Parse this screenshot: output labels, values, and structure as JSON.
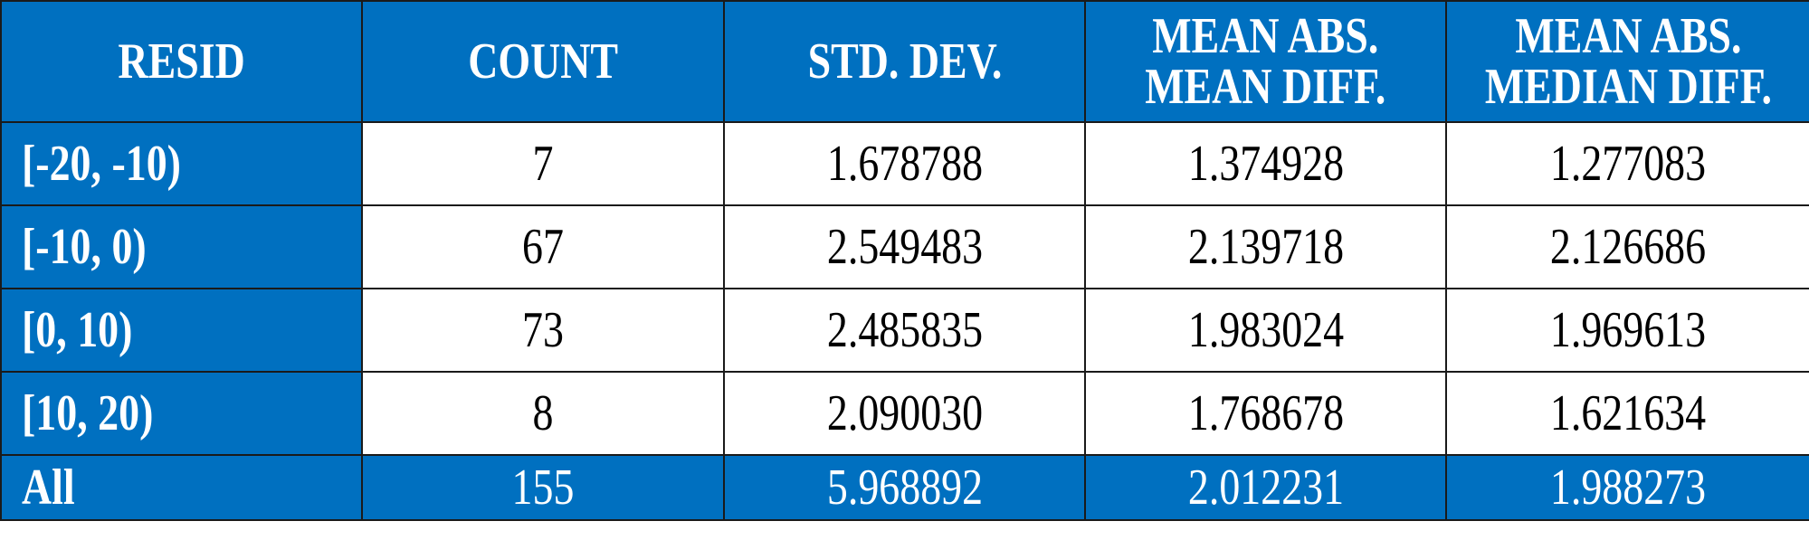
{
  "table": {
    "header": [
      [
        "RESID"
      ],
      [
        "COUNT"
      ],
      [
        "STD. DEV."
      ],
      [
        "MEAN ABS.",
        "MEAN DIFF."
      ],
      [
        "MEAN ABS.",
        "MEDIAN DIFF."
      ]
    ],
    "rows": [
      [
        "[-20, -10)",
        "7",
        "1.678788",
        "1.374928",
        "1.277083"
      ],
      [
        "[-10, 0)",
        "67",
        "2.549483",
        "2.139718",
        "2.126686"
      ],
      [
        "[0, 10)",
        "73",
        "2.485835",
        "1.983024",
        "1.969613"
      ],
      [
        "[10, 20)",
        "8",
        "2.090030",
        "1.768678",
        "1.621634"
      ],
      [
        "All",
        "155",
        "5.968892",
        "2.012231",
        "1.988273"
      ]
    ]
  }
}
